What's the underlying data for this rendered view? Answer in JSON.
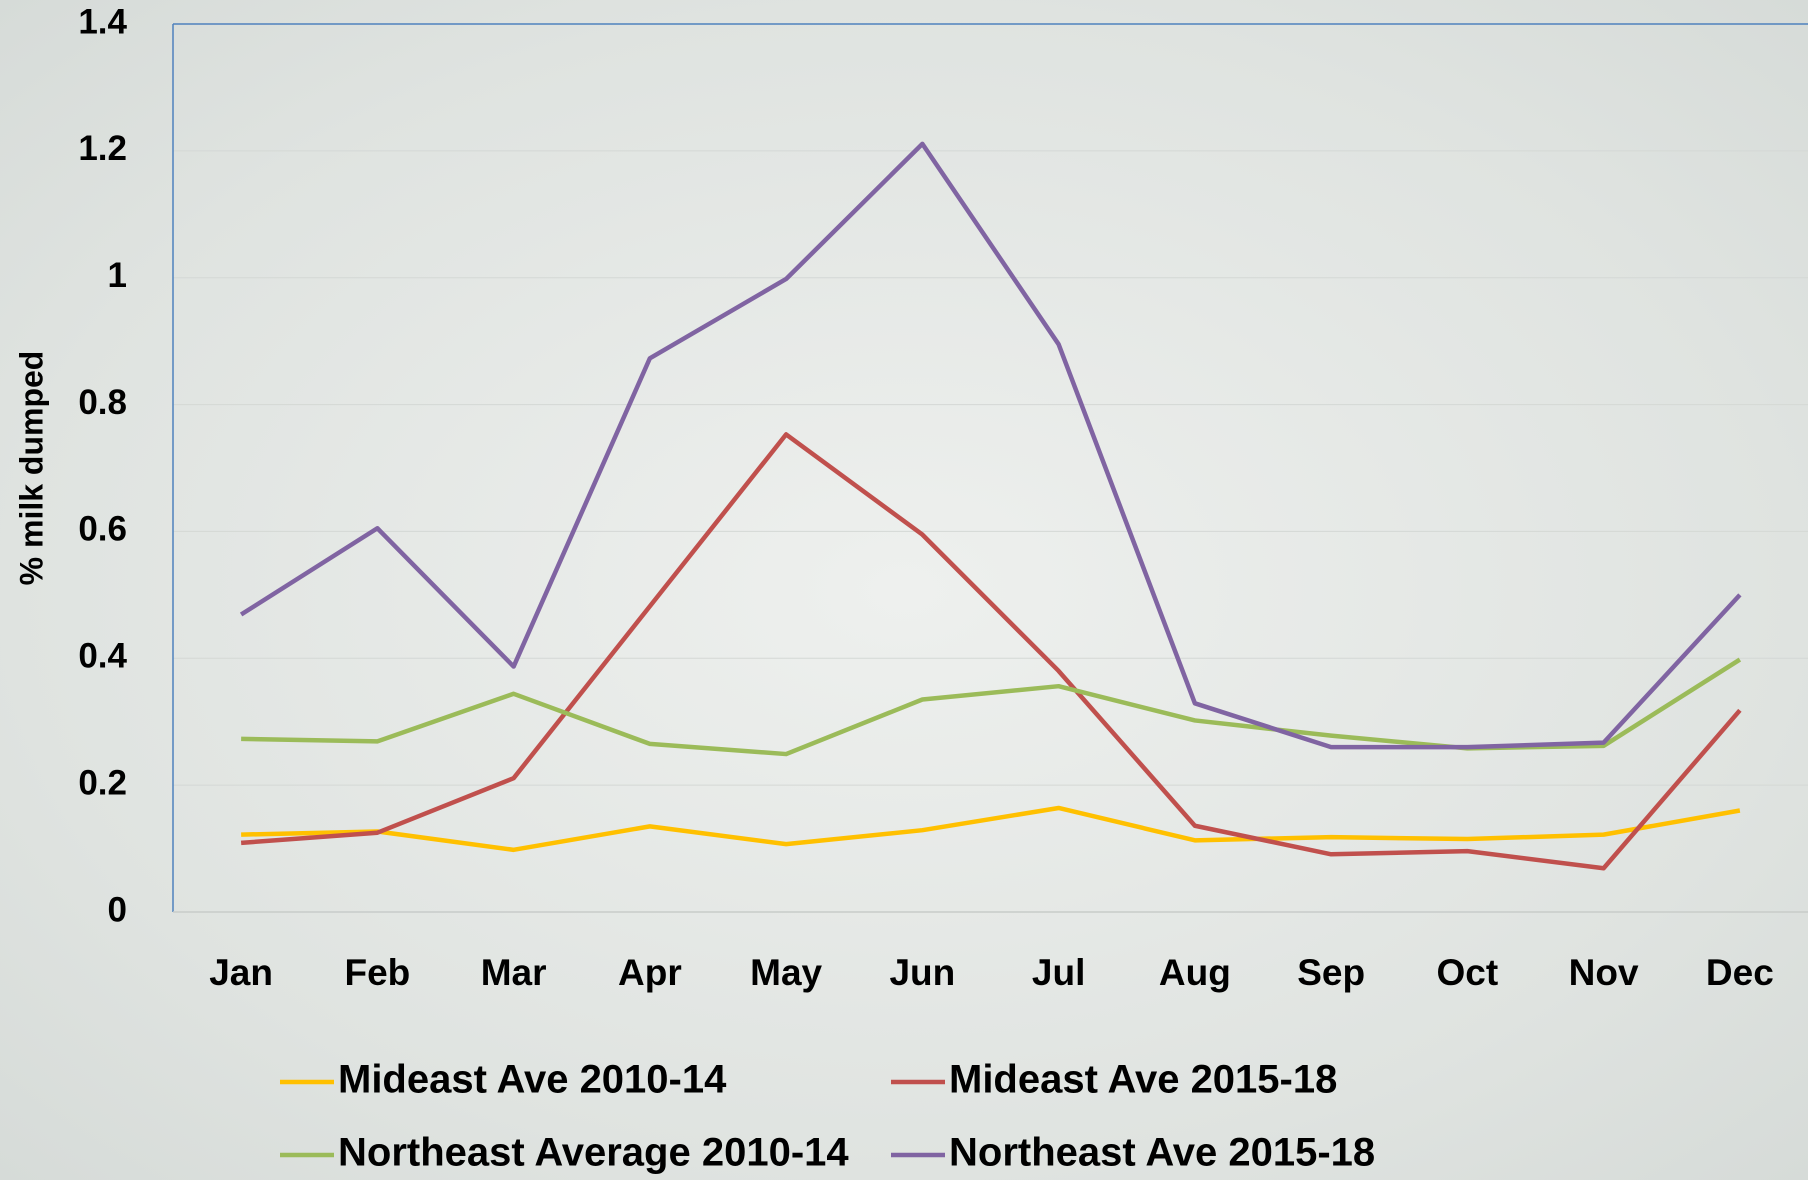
{
  "chart_data": {
    "type": "line",
    "y_label": "% milk dumped",
    "categories": [
      "Jan",
      "Feb",
      "Mar",
      "Apr",
      "May",
      "Jun",
      "Jul",
      "Aug",
      "Sep",
      "Oct",
      "Nov",
      "Dec"
    ],
    "series": [
      {
        "name": "Mideast Ave 2010-14",
        "color": "#ffc000",
        "values": [
          0.122,
          0.127,
          0.098,
          0.135,
          0.107,
          0.129,
          0.164,
          0.113,
          0.118,
          0.115,
          0.122,
          0.16
        ]
      },
      {
        "name": "Mideast Ave 2015-18",
        "color": "#c0504d",
        "values": [
          0.109,
          0.125,
          0.211,
          0.482,
          0.753,
          0.595,
          0.38,
          0.136,
          0.091,
          0.096,
          0.069,
          0.318
        ]
      },
      {
        "name": "Northeast Average 2010-14",
        "color": "#9bbb59",
        "values": [
          0.273,
          0.269,
          0.344,
          0.265,
          0.249,
          0.335,
          0.356,
          0.302,
          0.278,
          0.258,
          0.262,
          0.398
        ]
      },
      {
        "name": "Northeast Ave 2015-18",
        "color": "#8064a2",
        "values": [
          0.469,
          0.605,
          0.387,
          0.873,
          0.998,
          1.211,
          0.895,
          0.329,
          0.26,
          0.26,
          0.267,
          0.5
        ]
      }
    ],
    "ylim": [
      0,
      1.4
    ],
    "yticks": [
      0,
      0.2,
      0.4,
      0.6,
      0.8,
      1,
      1.2,
      1.4
    ],
    "grid": true
  }
}
